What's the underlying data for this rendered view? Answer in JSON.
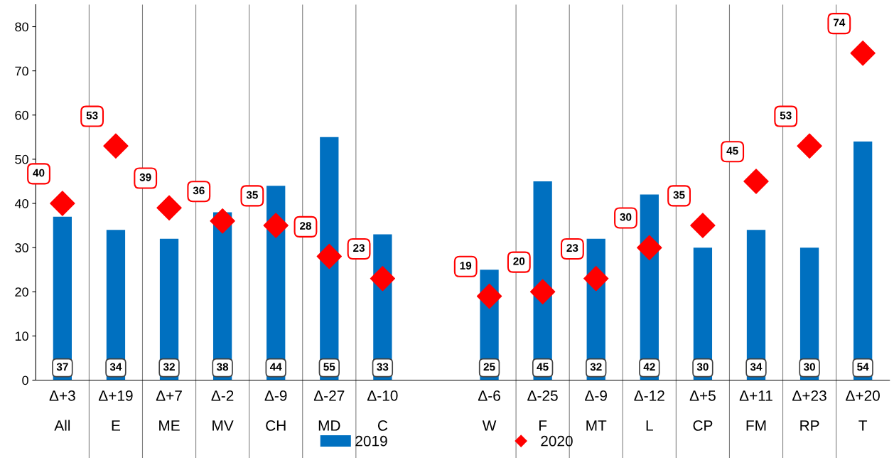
{
  "chart_data": {
    "type": "bar",
    "categories": [
      "Δ+3\nAll",
      "Δ+19\nE",
      "Δ+7\nME",
      "Δ-2\nMV",
      "Δ-9\nCH",
      "Δ-27\nMD",
      "Δ-10\nC",
      null,
      "Δ-6\nW",
      "Δ-25\nF",
      "Δ-9\nMT",
      "Δ-12\nL",
      "Δ+5\nCP",
      "Δ+11\nFM",
      "Δ+23\nRP",
      "Δ+20\nT"
    ],
    "series": [
      {
        "name": "2019",
        "color": "#0070c0",
        "values": [
          37,
          34,
          32,
          38,
          44,
          55,
          33,
          null,
          25,
          45,
          32,
          42,
          30,
          34,
          30,
          54
        ]
      },
      {
        "name": "2020",
        "type": "scatter",
        "color": "#ff0000",
        "marker": "diamond",
        "values": [
          40,
          53,
          39,
          36,
          35,
          28,
          23,
          null,
          19,
          20,
          23,
          30,
          35,
          45,
          53,
          74
        ]
      }
    ],
    "ylim": [
      0,
      85
    ],
    "yticks": [
      0,
      10,
      20,
      30,
      40,
      50,
      60,
      70,
      80
    ],
    "data_labels": true,
    "grid": "x",
    "legend": "bottom"
  }
}
